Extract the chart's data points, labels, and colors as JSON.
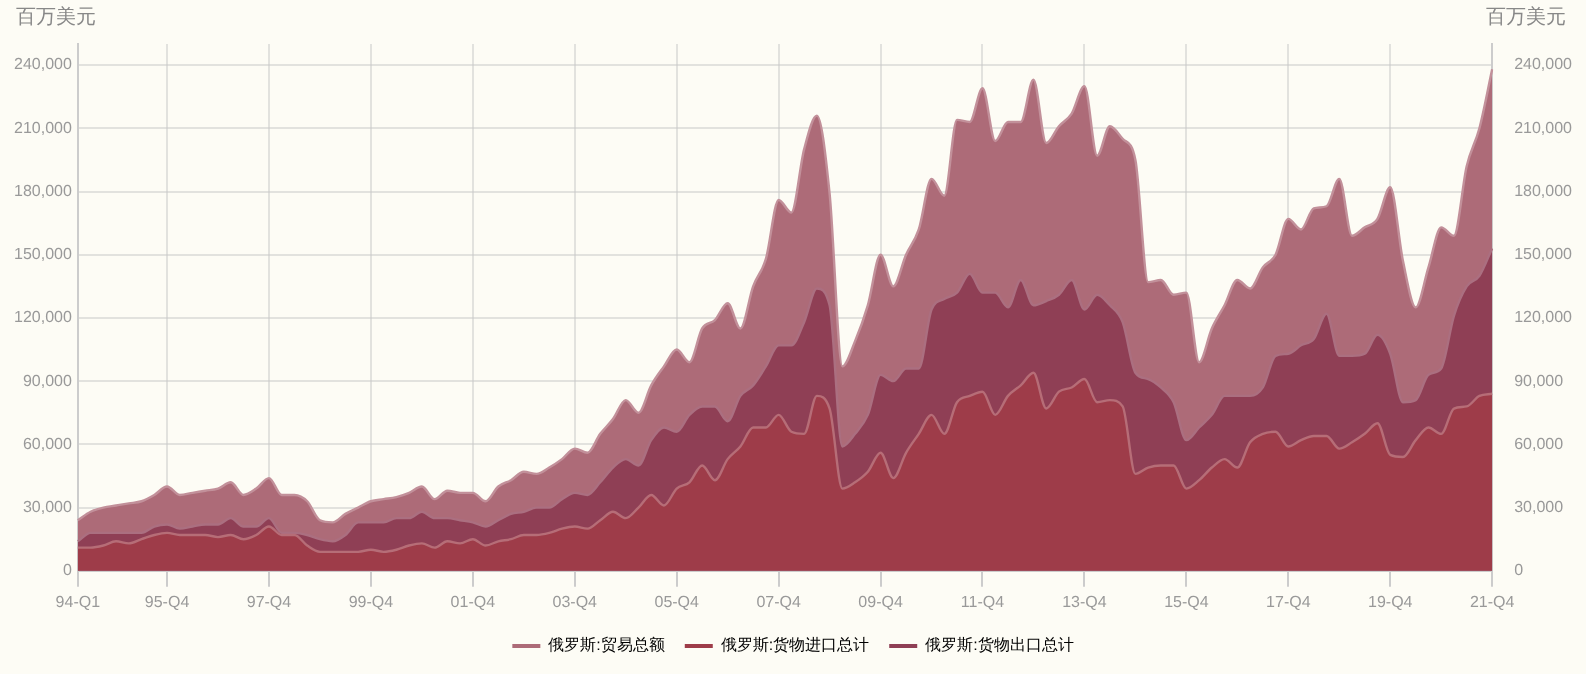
{
  "chart_data": {
    "type": "area",
    "ylabel": "百万美元",
    "y2label": "百万美元",
    "categories": [
      "94-Q1",
      null,
      null,
      null,
      null,
      null,
      null,
      "95-Q4",
      null,
      null,
      null,
      null,
      null,
      null,
      null,
      "97-Q4",
      null,
      null,
      null,
      null,
      null,
      null,
      null,
      "99-Q4",
      null,
      null,
      null,
      null,
      null,
      null,
      null,
      "01-Q4",
      null,
      null,
      null,
      null,
      null,
      null,
      null,
      "03-Q4",
      null,
      null,
      null,
      null,
      null,
      null,
      null,
      "05-Q4",
      null,
      null,
      null,
      null,
      null,
      null,
      null,
      "07-Q4",
      null,
      null,
      null,
      null,
      null,
      null,
      null,
      "09-Q4",
      null,
      null,
      null,
      null,
      null,
      null,
      null,
      "11-Q4",
      null,
      null,
      null,
      null,
      null,
      null,
      null,
      "13-Q4",
      null,
      null,
      null,
      null,
      null,
      null,
      null,
      "15-Q4",
      null,
      null,
      null,
      null,
      null,
      null,
      null,
      "17-Q4",
      null,
      null,
      null,
      null,
      null,
      null,
      null,
      "19-Q4",
      null,
      null,
      null,
      null,
      null,
      null,
      null,
      "21-Q4"
    ],
    "series": [
      {
        "name": "俄罗斯:贸易总额",
        "color": "#ad6b78",
        "values": [
          24000,
          28000,
          30000,
          31000,
          32000,
          33000,
          36000,
          40000,
          36000,
          37000,
          38000,
          39000,
          42000,
          36000,
          39000,
          44000,
          36000,
          36000,
          33000,
          24000,
          23000,
          27000,
          30000,
          33000,
          34000,
          35000,
          37000,
          40000,
          34000,
          38000,
          37000,
          37000,
          33000,
          40000,
          43000,
          47000,
          46000,
          49000,
          53000,
          58000,
          56000,
          65000,
          72000,
          81000,
          75000,
          88000,
          97000,
          105000,
          99000,
          115000,
          119000,
          127000,
          115000,
          135000,
          148000,
          176000,
          170000,
          200000,
          216000,
          179000,
          97000,
          109000,
          126000,
          150000,
          135000,
          150000,
          162000,
          186000,
          178000,
          214000,
          213000,
          229000,
          204000,
          213000,
          213000,
          233000,
          203000,
          211000,
          217000,
          230000,
          197000,
          211000,
          205000,
          195000,
          137000,
          138000,
          131000,
          132000,
          99000,
          115000,
          126000,
          138000,
          134000,
          144000,
          150000,
          167000,
          162000,
          172000,
          173000,
          186000,
          159000,
          163000,
          167000,
          182000,
          147000,
          125000,
          144000,
          163000,
          159000,
          192000,
          210000,
          238000
        ]
      },
      {
        "name": "俄罗斯:货物进口总计",
        "color": "#9e3c49",
        "values": [
          11000,
          11000,
          12000,
          14000,
          13000,
          15000,
          17000,
          18000,
          17000,
          17000,
          17000,
          16000,
          17000,
          15000,
          17000,
          21000,
          17000,
          17000,
          12000,
          9000,
          9000,
          9000,
          9000,
          10000,
          9000,
          10000,
          12000,
          13000,
          11000,
          14000,
          13000,
          15000,
          12000,
          14000,
          15000,
          17000,
          17000,
          18000,
          20000,
          21000,
          20000,
          24000,
          28000,
          25000,
          30000,
          36000,
          31000,
          39000,
          42000,
          50000,
          43000,
          53000,
          59000,
          68000,
          68000,
          74000,
          66000,
          65000,
          83000,
          77000,
          39000,
          42000,
          47000,
          56000,
          44000,
          56000,
          65000,
          74000,
          65000,
          80000,
          83000,
          85000,
          74000,
          83000,
          88000,
          94000,
          77000,
          85000,
          87000,
          91000,
          80000,
          81000,
          78000,
          46000,
          49000,
          50000,
          50000,
          39000,
          43000,
          49000,
          53000,
          49000,
          61000,
          65000,
          66000,
          59000,
          62000,
          64000,
          64000,
          58000,
          61000,
          65000,
          70000,
          55000,
          54000,
          62000,
          68000,
          65000,
          77000,
          78000,
          83000,
          84000
        ]
      },
      {
        "name": "俄罗斯:货物出口总计",
        "color": "#8f3f55",
        "values": [
          14000,
          18000,
          18000,
          18000,
          18000,
          18000,
          21000,
          22000,
          20000,
          21000,
          22000,
          22000,
          25000,
          21000,
          21000,
          25000,
          18000,
          18000,
          17000,
          15000,
          14000,
          17000,
          23000,
          23000,
          23000,
          25000,
          25000,
          28000,
          25000,
          25000,
          24000,
          23000,
          21000,
          24000,
          27000,
          28000,
          30000,
          30000,
          34000,
          37000,
          36000,
          42000,
          49000,
          53000,
          50000,
          62000,
          68000,
          66000,
          74000,
          78000,
          78000,
          71000,
          83000,
          88000,
          97000,
          107000,
          107000,
          118000,
          134000,
          126000,
          59000,
          65000,
          74000,
          93000,
          90000,
          96000,
          96000,
          124000,
          129000,
          132000,
          141000,
          132000,
          132000,
          125000,
          138000,
          126000,
          128000,
          131000,
          138000,
          124000,
          131000,
          126000,
          118000,
          94000,
          91000,
          87000,
          80000,
          62000,
          68000,
          74000,
          83000,
          83000,
          83000,
          87000,
          102000,
          103000,
          107000,
          110000,
          122000,
          102000,
          102000,
          103000,
          112000,
          103000,
          80000,
          81000,
          93000,
          96000,
          121000,
          135000,
          140000,
          153000
        ]
      }
    ],
    "ylim": [
      0,
      250000
    ],
    "yticks": [
      0,
      {
        "value": 30000,
        "label": "30,000"
      },
      {
        "value": 60000,
        "label": "60,000"
      },
      {
        "value": 90000,
        "label": "90,000"
      },
      {
        "value": 120000,
        "label": "120,000"
      },
      {
        "value": 150000,
        "label": "150,000"
      },
      {
        "value": 180000,
        "label": "180,000"
      },
      {
        "value": 210000,
        "label": "210,000"
      },
      {
        "value": 240000,
        "label": "240,000"
      }
    ],
    "y2lim": [
      0,
      250000
    ],
    "y2ticks": [
      0,
      {
        "value": 30000,
        "label": "30,000"
      },
      {
        "value": 60000,
        "label": "60,000"
      },
      {
        "value": 90000,
        "label": "90,000"
      },
      {
        "value": 120000,
        "label": "120,000"
      },
      {
        "value": 150000,
        "label": "150,000"
      },
      {
        "value": 180000,
        "label": "180,000"
      },
      {
        "value": 210000,
        "label": "210,000"
      },
      {
        "value": 240000,
        "label": "240,000"
      }
    ],
    "grid": true,
    "legend": "bottom"
  }
}
